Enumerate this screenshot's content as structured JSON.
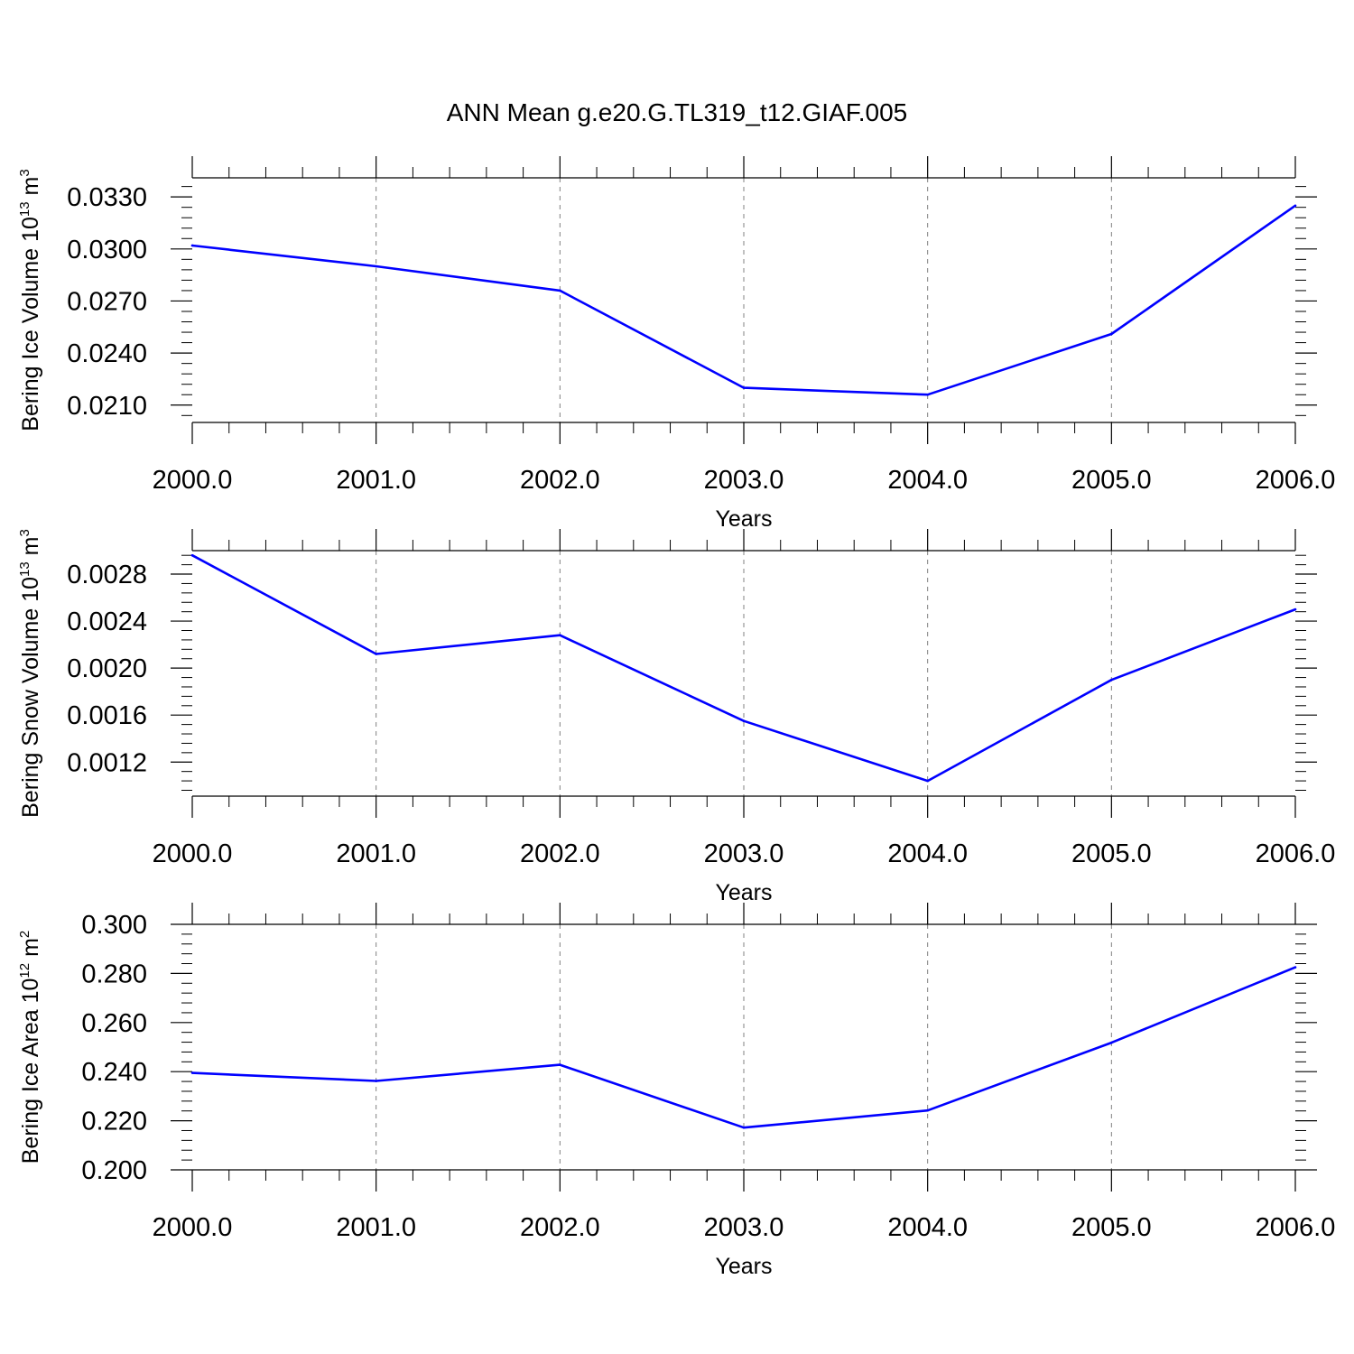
{
  "title": "ANN Mean g.e20.G.TL319_t12.GIAF.005",
  "colors": {
    "line": "#0000ff",
    "axis": "#000000",
    "grid": "#808080"
  },
  "chart_data": [
    {
      "type": "line",
      "x": [
        2000,
        2001,
        2002,
        2003,
        2004,
        2005,
        2006
      ],
      "xlim": [
        2000,
        2006
      ],
      "x_tick_labels": [
        "2000.0",
        "2001.0",
        "2002.0",
        "2003.0",
        "2004.0",
        "2005.0",
        "2006.0"
      ],
      "xlabel": "Years",
      "ylabel": {
        "text": "Bering Ice Volume 10",
        "sup": "13",
        "unit": " m",
        "unit_sup": "3"
      },
      "ylim": [
        0.02,
        0.0341
      ],
      "y_ticks": [
        0.021,
        0.024,
        0.027,
        0.03,
        0.033
      ],
      "y_tick_labels": [
        "0.0210",
        "0.0240",
        "0.0270",
        "0.0300",
        "0.0330"
      ],
      "values": [
        0.0302,
        0.029,
        0.0276,
        0.022,
        0.0216,
        0.0251,
        0.0325
      ],
      "grid_x": true
    },
    {
      "type": "line",
      "x": [
        2000,
        2001,
        2002,
        2003,
        2004,
        2005,
        2006
      ],
      "xlim": [
        2000,
        2006
      ],
      "x_tick_labels": [
        "2000.0",
        "2001.0",
        "2002.0",
        "2003.0",
        "2004.0",
        "2005.0",
        "2006.0"
      ],
      "xlabel": "Years",
      "ylabel": {
        "text": "Bering Snow Volume 10",
        "sup": "13",
        "unit": " m",
        "unit_sup": "3"
      },
      "ylim": [
        0.00091,
        0.003
      ],
      "y_ticks": [
        0.0012,
        0.0016,
        0.002,
        0.0024,
        0.0028
      ],
      "y_tick_labels": [
        "0.0012",
        "0.0016",
        "0.0020",
        "0.0024",
        "0.0028"
      ],
      "values": [
        0.00296,
        0.00212,
        0.00228,
        0.00155,
        0.00104,
        0.0019,
        0.0025
      ],
      "grid_x": true
    },
    {
      "type": "line",
      "x": [
        2000,
        2001,
        2002,
        2003,
        2004,
        2005,
        2006
      ],
      "xlim": [
        2000,
        2006
      ],
      "x_tick_labels": [
        "2000.0",
        "2001.0",
        "2002.0",
        "2003.0",
        "2004.0",
        "2005.0",
        "2006.0"
      ],
      "xlabel": "Years",
      "ylabel": {
        "text": "Bering Ice Area 10",
        "sup": "12",
        "unit": " m",
        "unit_sup": "2"
      },
      "ylim": [
        0.2,
        0.3
      ],
      "y_ticks": [
        0.2,
        0.22,
        0.24,
        0.26,
        0.28,
        0.3
      ],
      "y_tick_labels": [
        "0.200",
        "0.220",
        "0.240",
        "0.260",
        "0.280",
        "0.300"
      ],
      "values": [
        0.2395,
        0.2362,
        0.2428,
        0.2172,
        0.2242,
        0.2518,
        0.2825
      ],
      "grid_x": true
    }
  ]
}
